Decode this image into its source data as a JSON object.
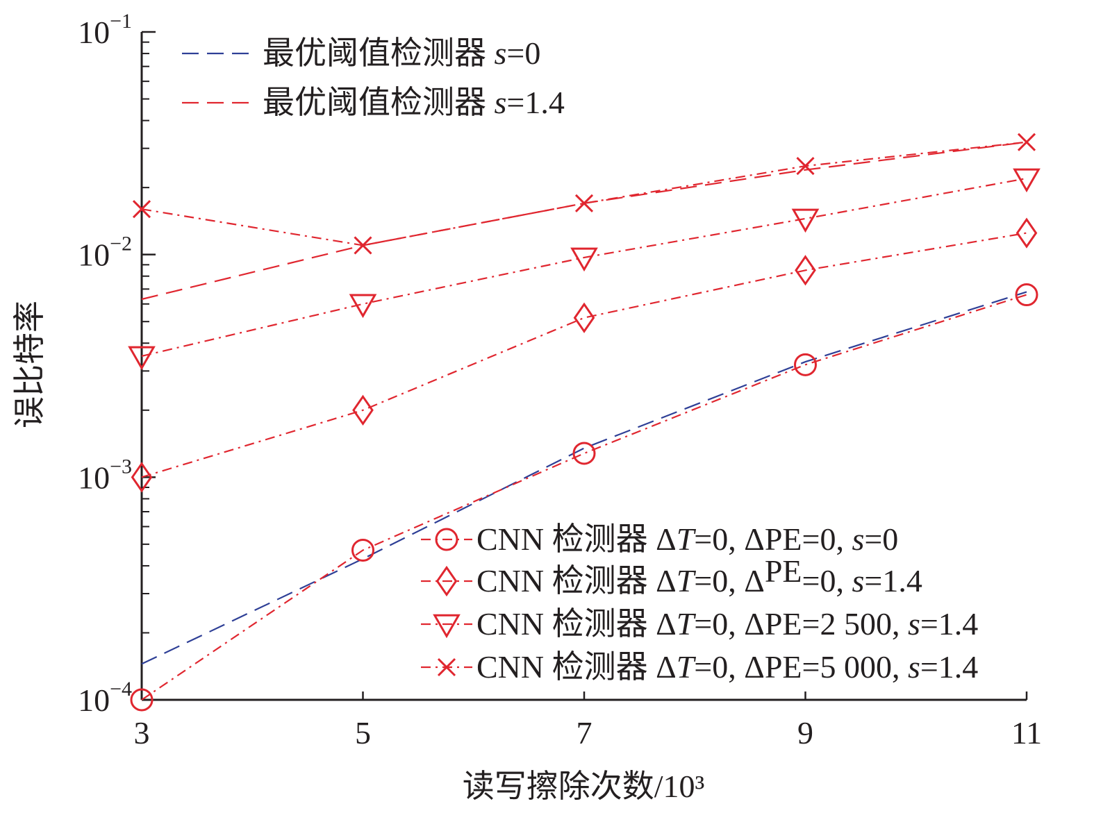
{
  "chart_data": {
    "type": "line",
    "xlabel": "读写擦除次数/10³",
    "ylabel": "误比特率",
    "yscale": "log",
    "xlim": [
      3,
      11
    ],
    "ylim": [
      0.0001,
      0.1
    ],
    "x_ticks": [
      "3",
      "5",
      "7",
      "9",
      "11"
    ],
    "y_ticks": [
      {
        "base": "10",
        "exp": "−4",
        "value": 0.0001
      },
      {
        "base": "10",
        "exp": "−3",
        "value": 0.001
      },
      {
        "base": "10",
        "exp": "−2",
        "value": 0.01
      },
      {
        "base": "10",
        "exp": "−1",
        "value": 0.1
      }
    ],
    "grid": false,
    "x": [
      3,
      5,
      7,
      9,
      11
    ],
    "series": [
      {
        "name": "最优阈值检测器 s=0",
        "label_parts": [
          {
            "t": "最优阈值检测器 "
          },
          {
            "t": "s",
            "i": true
          },
          {
            "t": "=0"
          }
        ],
        "values": [
          0.000145,
          0.00043,
          0.00135,
          0.0033,
          0.0068
        ],
        "color": "#2e3f96",
        "dash": "dashed",
        "marker": "none"
      },
      {
        "name": "最优阈值检测器 s=1.4",
        "label_parts": [
          {
            "t": "最优阈值检测器 "
          },
          {
            "t": "s",
            "i": true
          },
          {
            "t": "=1.4"
          }
        ],
        "values": [
          0.0063,
          0.011,
          0.017,
          0.024,
          0.032
        ],
        "color": "#e0262f",
        "dash": "dashed",
        "marker": "none"
      },
      {
        "name": "CNN 检测器 ΔT=0, ΔPE=0, s=0",
        "label_parts": [
          {
            "t": "CNN 检测器 Δ"
          },
          {
            "t": "T",
            "i": true
          },
          {
            "t": "=0, ΔPE=0, "
          },
          {
            "t": "s",
            "i": true
          },
          {
            "t": "=0"
          }
        ],
        "values": [
          0.0001,
          0.00047,
          0.00128,
          0.0032,
          0.0066
        ],
        "color": "#e0262f",
        "dash": "dashdot",
        "marker": "circle"
      },
      {
        "name": "CNN 检测器 ΔT=0, ΔPE=0, s=1.4",
        "label_parts": [
          {
            "t": "CNN 检测器 Δ"
          },
          {
            "t": "T",
            "i": true
          },
          {
            "t": "=0, Δ"
          },
          {
            "t": "PE",
            "sup": true
          },
          {
            "t": "=0, "
          },
          {
            "t": "s",
            "i": true
          },
          {
            "t": "=1.4"
          }
        ],
        "values": [
          0.001,
          0.002,
          0.0052,
          0.0085,
          0.0125
        ],
        "color": "#e0262f",
        "dash": "dashdot",
        "marker": "diamond"
      },
      {
        "name": "CNN 检测器 ΔT=0, ΔPE=2 500, s=1.4",
        "label_parts": [
          {
            "t": "CNN 检测器 Δ"
          },
          {
            "t": "T",
            "i": true
          },
          {
            "t": "=0, ΔPE=2 500, "
          },
          {
            "t": "s",
            "i": true
          },
          {
            "t": "=1.4"
          }
        ],
        "values": [
          0.0035,
          0.006,
          0.0097,
          0.0145,
          0.022
        ],
        "color": "#e0262f",
        "dash": "dashdot",
        "marker": "triangle-down"
      },
      {
        "name": "CNN 检测器 ΔT=0, ΔPE=5 000, s=1.4",
        "label_parts": [
          {
            "t": "CNN 检测器 Δ"
          },
          {
            "t": "T",
            "i": true
          },
          {
            "t": "=0, ΔPE=5 000, "
          },
          {
            "t": "s",
            "i": true
          },
          {
            "t": "=1.4"
          }
        ],
        "values": [
          0.016,
          0.011,
          0.017,
          0.025,
          0.032
        ],
        "color": "#e0262f",
        "dash": "dashdot",
        "marker": "x"
      }
    ],
    "legends": [
      {
        "position": "top-left",
        "series": [
          0,
          1
        ]
      },
      {
        "position": "bottom-right",
        "series": [
          2,
          3,
          4,
          5
        ]
      }
    ]
  }
}
